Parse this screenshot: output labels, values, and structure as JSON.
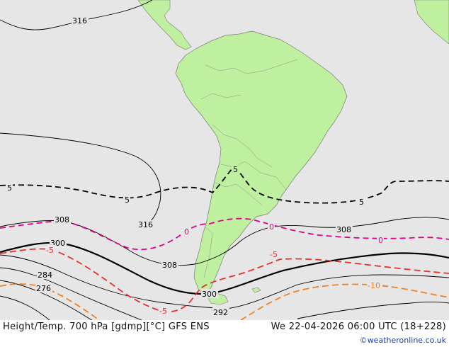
{
  "title": "Height/Temp. 700 hPa [gdmp][°C] GFS ENS",
  "valid_time": "We 22-04-2026 06:00 UTC (18+228)",
  "credit": "©weatheronline.co.uk",
  "colors": {
    "ocean": "#e6e6e6",
    "land": "#bff0a0",
    "height_contour": "#000000",
    "isotherm_zero": "#e0008c",
    "isotherm_minus5": "#e53030",
    "isotherm_minus10": "#f08020",
    "isotherm_plus5": "#000000"
  },
  "height_labels": {
    "h316_top": "316",
    "h316_mid": "316",
    "h308_left": "308",
    "h308_right": "308",
    "h308_mid": "308",
    "h300_left": "300",
    "h300_center": "300",
    "h292": "292",
    "h284": "284",
    "h276": "276"
  },
  "temp_labels": {
    "t5_left": "5",
    "t5_mid": "5",
    "t5_top": "5",
    "t5_right": "5",
    "t0_left": "0",
    "t0_mid": "0",
    "t0_right": "0",
    "tm5_left": "-5",
    "tm5_mid": "-5",
    "tm5_bottom": "-5",
    "tm10": "-10"
  }
}
